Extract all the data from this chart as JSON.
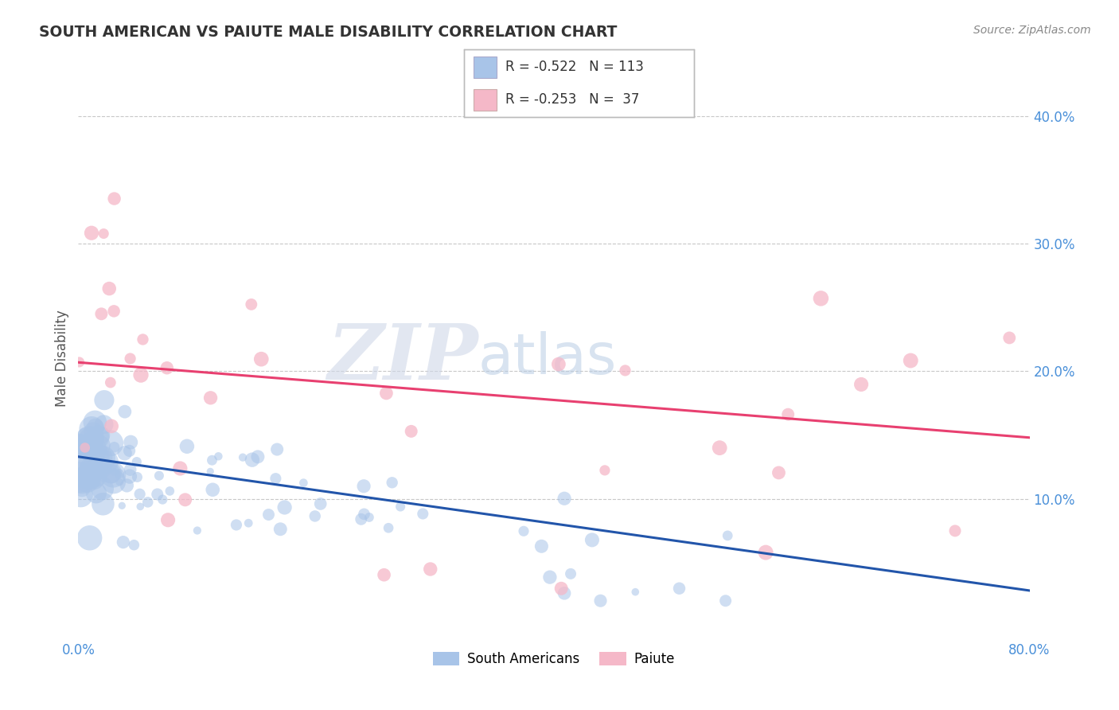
{
  "title": "SOUTH AMERICAN VS PAIUTE MALE DISABILITY CORRELATION CHART",
  "source": "Source: ZipAtlas.com",
  "ylabel": "Male Disability",
  "xlim": [
    0.0,
    0.8
  ],
  "ylim": [
    -0.01,
    0.43
  ],
  "yticks": [
    0.1,
    0.2,
    0.3,
    0.4
  ],
  "xticks": [
    0.0,
    0.8
  ],
  "blue_R": -0.522,
  "blue_N": 113,
  "pink_R": -0.253,
  "pink_N": 37,
  "blue_color": "#a8c4e8",
  "pink_color": "#f5b8c8",
  "blue_line_color": "#2255aa",
  "pink_line_color": "#e84070",
  "watermark_ZIP": "ZIP",
  "watermark_atlas": "atlas",
  "legend_labels": [
    "South Americans",
    "Paiute"
  ],
  "background_color": "#ffffff",
  "grid_color": "#c8c8c8",
  "tick_color": "#4a90d9",
  "title_color": "#333333",
  "source_color": "#888888",
  "ylabel_color": "#555555",
  "blue_line_start_y": 0.133,
  "blue_line_end_y": 0.028,
  "pink_line_start_y": 0.207,
  "pink_line_end_y": 0.148
}
